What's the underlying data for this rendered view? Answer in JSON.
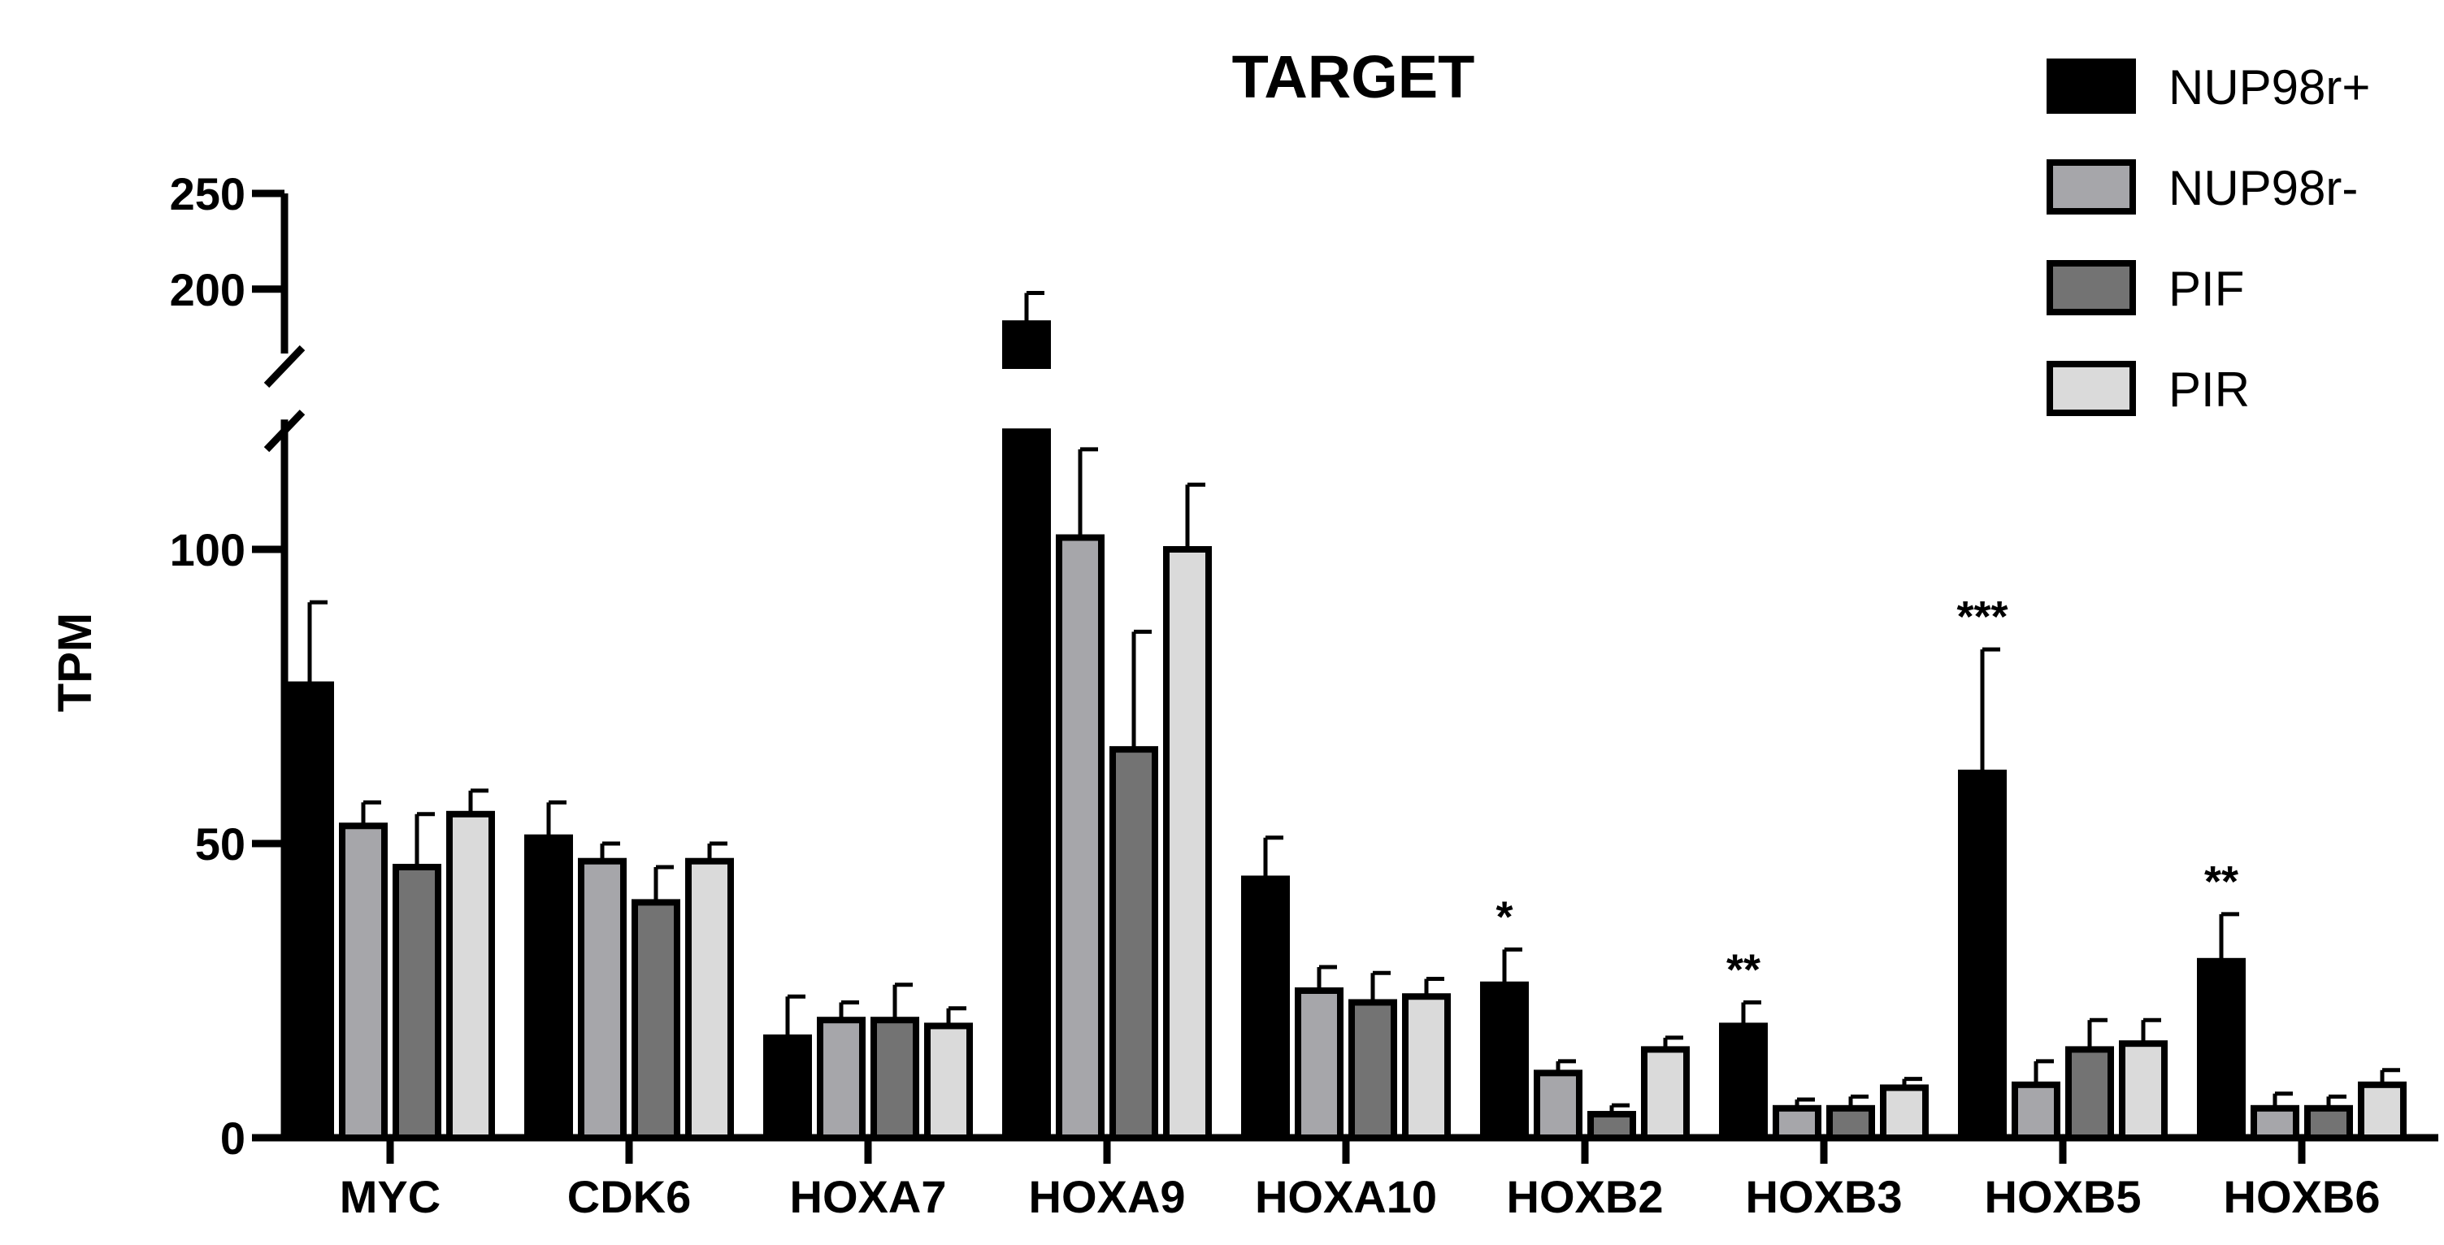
{
  "chart_data": {
    "type": "bar",
    "title": "TARGET",
    "ylabel": "TPM",
    "xlabel": "",
    "categories": [
      "MYC",
      "CDK6",
      "HOXA7",
      "HOXA9",
      "HOXA10",
      "HOXB2",
      "HOXB3",
      "HOXB5",
      "HOXB6"
    ],
    "series": [
      {
        "name": "NUP98r+",
        "color": "#000000",
        "values": [
          77,
          51,
          17,
          182,
          44,
          26,
          19,
          62,
          30
        ],
        "errors": [
          14,
          6,
          7,
          16,
          7,
          6,
          4,
          21,
          8
        ]
      },
      {
        "name": "NUP98r-",
        "color": "#a6a6aa",
        "values": [
          53,
          47,
          20,
          102,
          25,
          11,
          5,
          9,
          5
        ],
        "errors": [
          4,
          3,
          3,
          15,
          4,
          2,
          1.5,
          4,
          2.5
        ]
      },
      {
        "name": "PIF",
        "color": "#737373",
        "values": [
          46,
          40,
          20,
          66,
          23,
          4,
          5,
          15,
          5
        ],
        "errors": [
          9,
          6,
          6,
          20,
          5,
          1.5,
          2,
          5,
          2
        ]
      },
      {
        "name": "PIR",
        "color": "#dadada",
        "values": [
          55,
          47,
          19,
          100,
          24,
          15,
          8.5,
          16,
          9
        ],
        "errors": [
          4,
          3,
          3,
          11,
          3,
          2,
          1.5,
          4,
          2.5
        ]
      }
    ],
    "significance": [
      "",
      "",
      "",
      "",
      "",
      "*",
      "**",
      "***",
      "**"
    ],
    "y_axis": {
      "ticks": [
        0,
        50,
        100,
        200,
        250
      ],
      "tick_labels": [
        "0",
        "50",
        "100",
        "200",
        "250"
      ],
      "lower_segment": [
        0,
        120
      ],
      "upper_segment": [
        160,
        250
      ]
    },
    "legend_position": "top-right",
    "grid": false
  }
}
